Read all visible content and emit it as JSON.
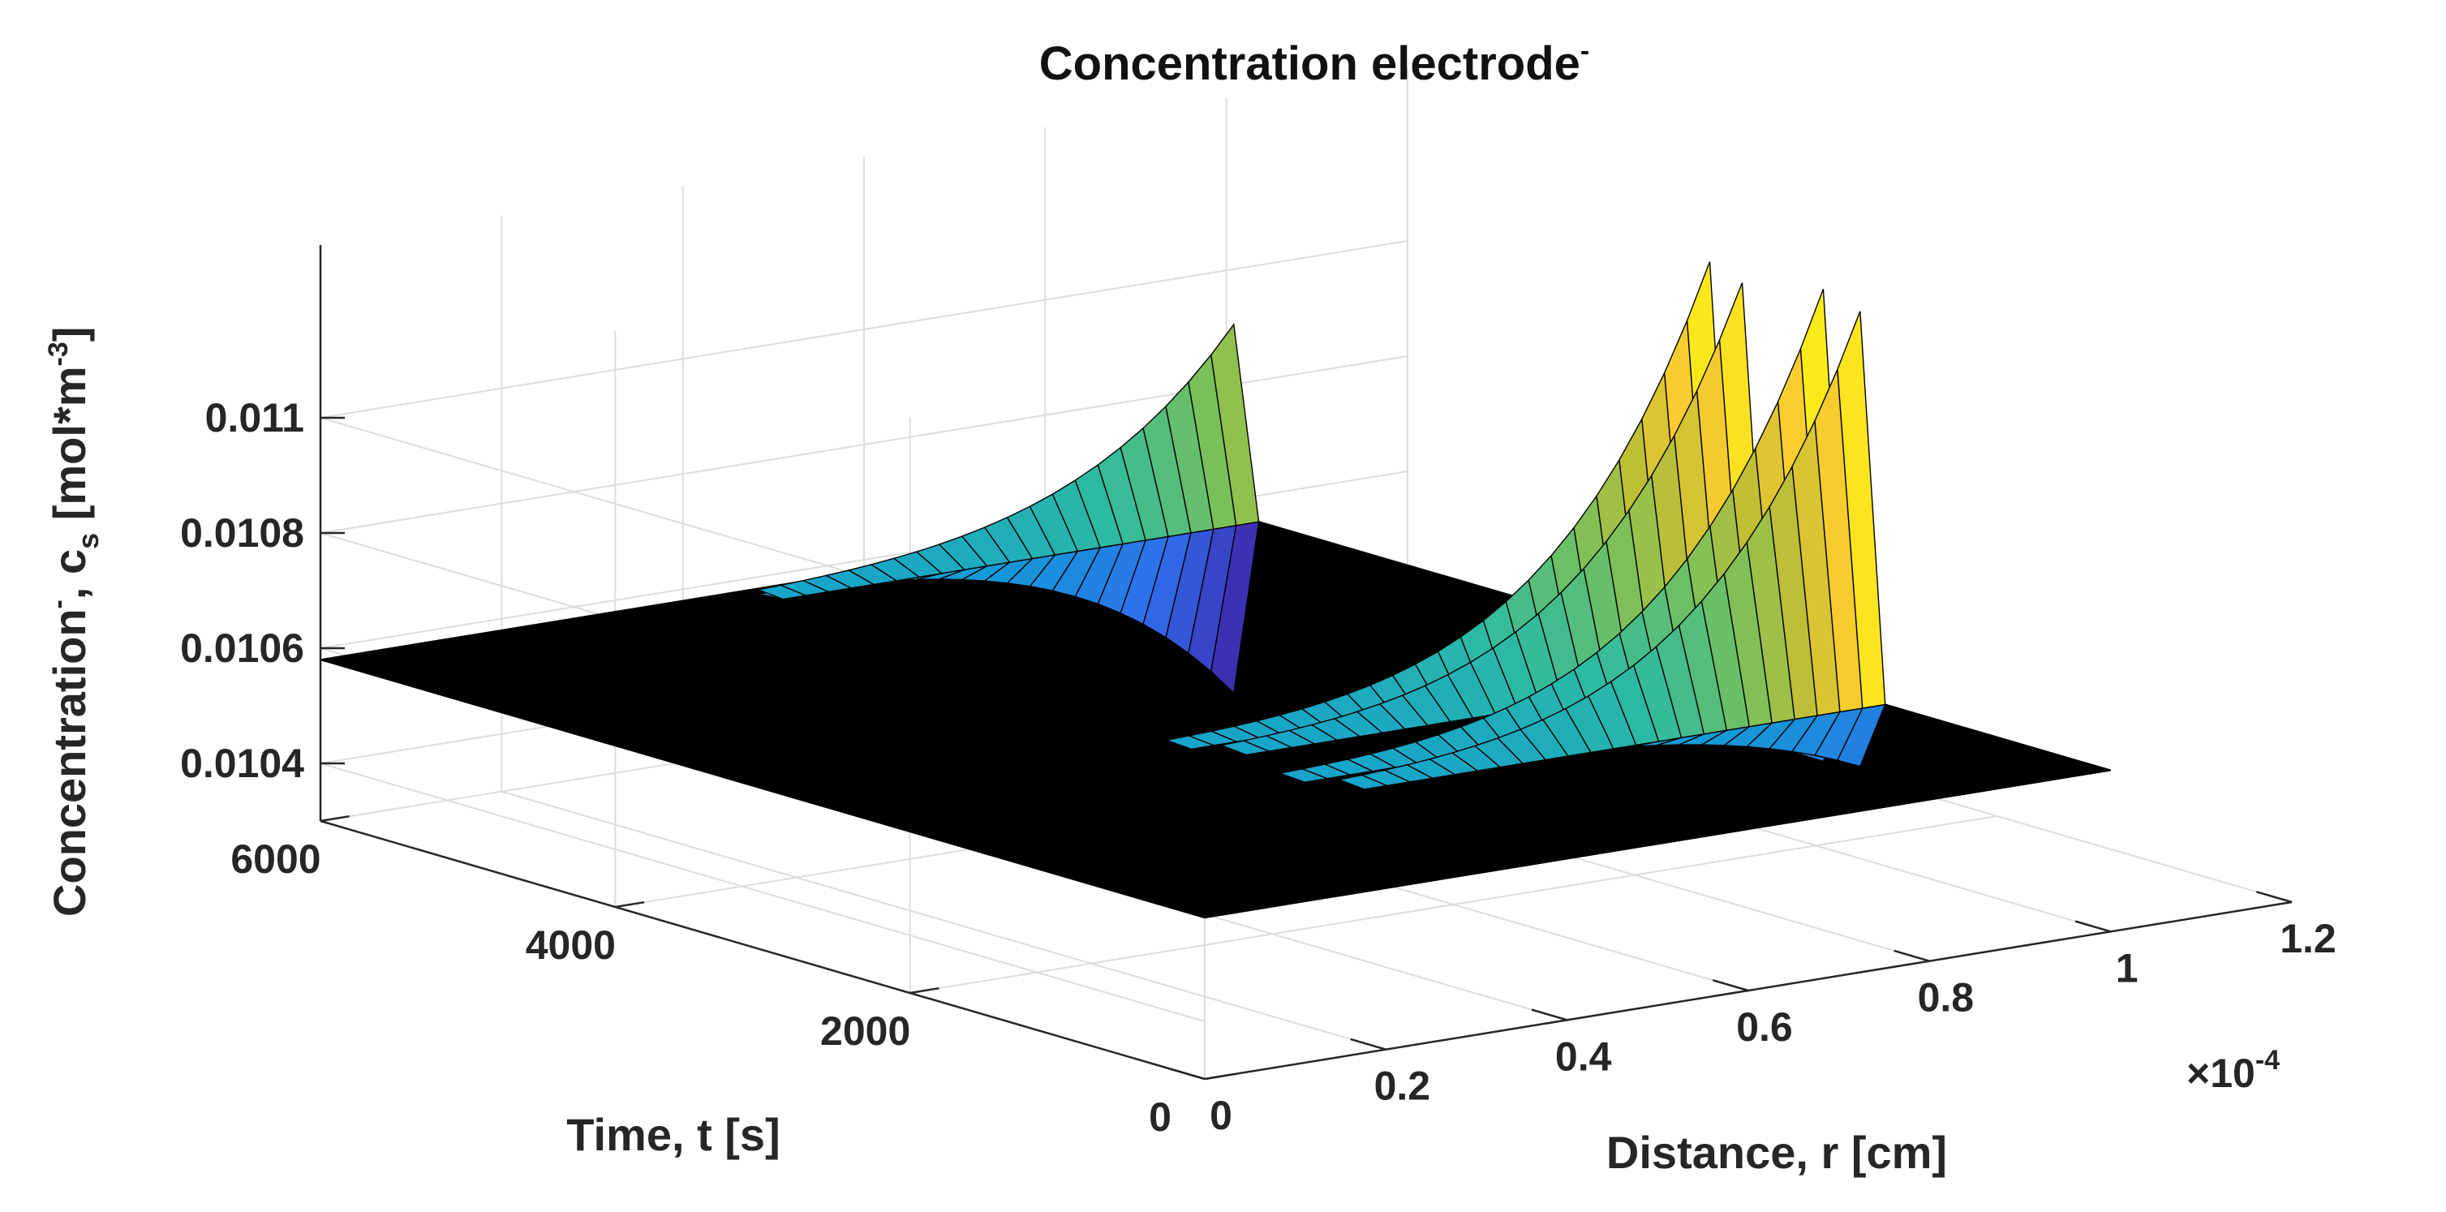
{
  "chart_data": {
    "type": "surface",
    "title": "Concentration electrode",
    "title_superscript": "-",
    "xlabel": "Distance, r [cm]",
    "ylabel": "Time, t [s]",
    "zlabel": {
      "main": "Concentration",
      "superscript1": "-",
      "comma": ", c",
      "subscript": "s",
      "units": " [mol*m",
      "superscript2": "-3",
      "close": "]"
    },
    "x_exponent_label": {
      "base": "×10",
      "exp": "-4"
    },
    "xlim": [
      0,
      1.2
    ],
    "ylim": [
      0,
      6000
    ],
    "zlim": [
      0.0103,
      0.0113
    ],
    "x_ticks": [
      0,
      0.2,
      0.4,
      0.6,
      0.8,
      1,
      1.2
    ],
    "x_tick_labels": [
      "0",
      "0.2",
      "0.4",
      "0.6",
      "0.8",
      "1",
      "1.2"
    ],
    "y_ticks": [
      0,
      2000,
      4000,
      6000
    ],
    "y_tick_labels": [
      "0",
      "2000",
      "4000",
      "6000"
    ],
    "z_ticks": [
      0.0104,
      0.0106,
      0.0108,
      0.011
    ],
    "z_tick_labels": [
      "0.0104",
      "0.0106",
      "0.0108",
      "0.011"
    ],
    "r_max": 1.0,
    "baseline_concentration": 0.01058,
    "colormap": [
      "#3e26a8",
      "#2f6ded",
      "#119fd4",
      "#2ebba0",
      "#78c05a",
      "#c5bf33",
      "#fbcd2f",
      "#f9fb0e"
    ],
    "surface_edge_color": "#000000",
    "pulses": [
      {
        "time": 1700,
        "peak": 0.01125,
        "trough": 0.01046
      },
      {
        "time": 1950,
        "peak": 0.01127,
        "trough": 0.01045
      },
      {
        "time": 2500,
        "peak": 0.01124,
        "trough": 0.01046
      },
      {
        "time": 2720,
        "peak": 0.01126,
        "trough": 0.01046
      },
      {
        "time": 5950,
        "peak": 0.01091,
        "trough": 0.01027
      }
    ]
  }
}
